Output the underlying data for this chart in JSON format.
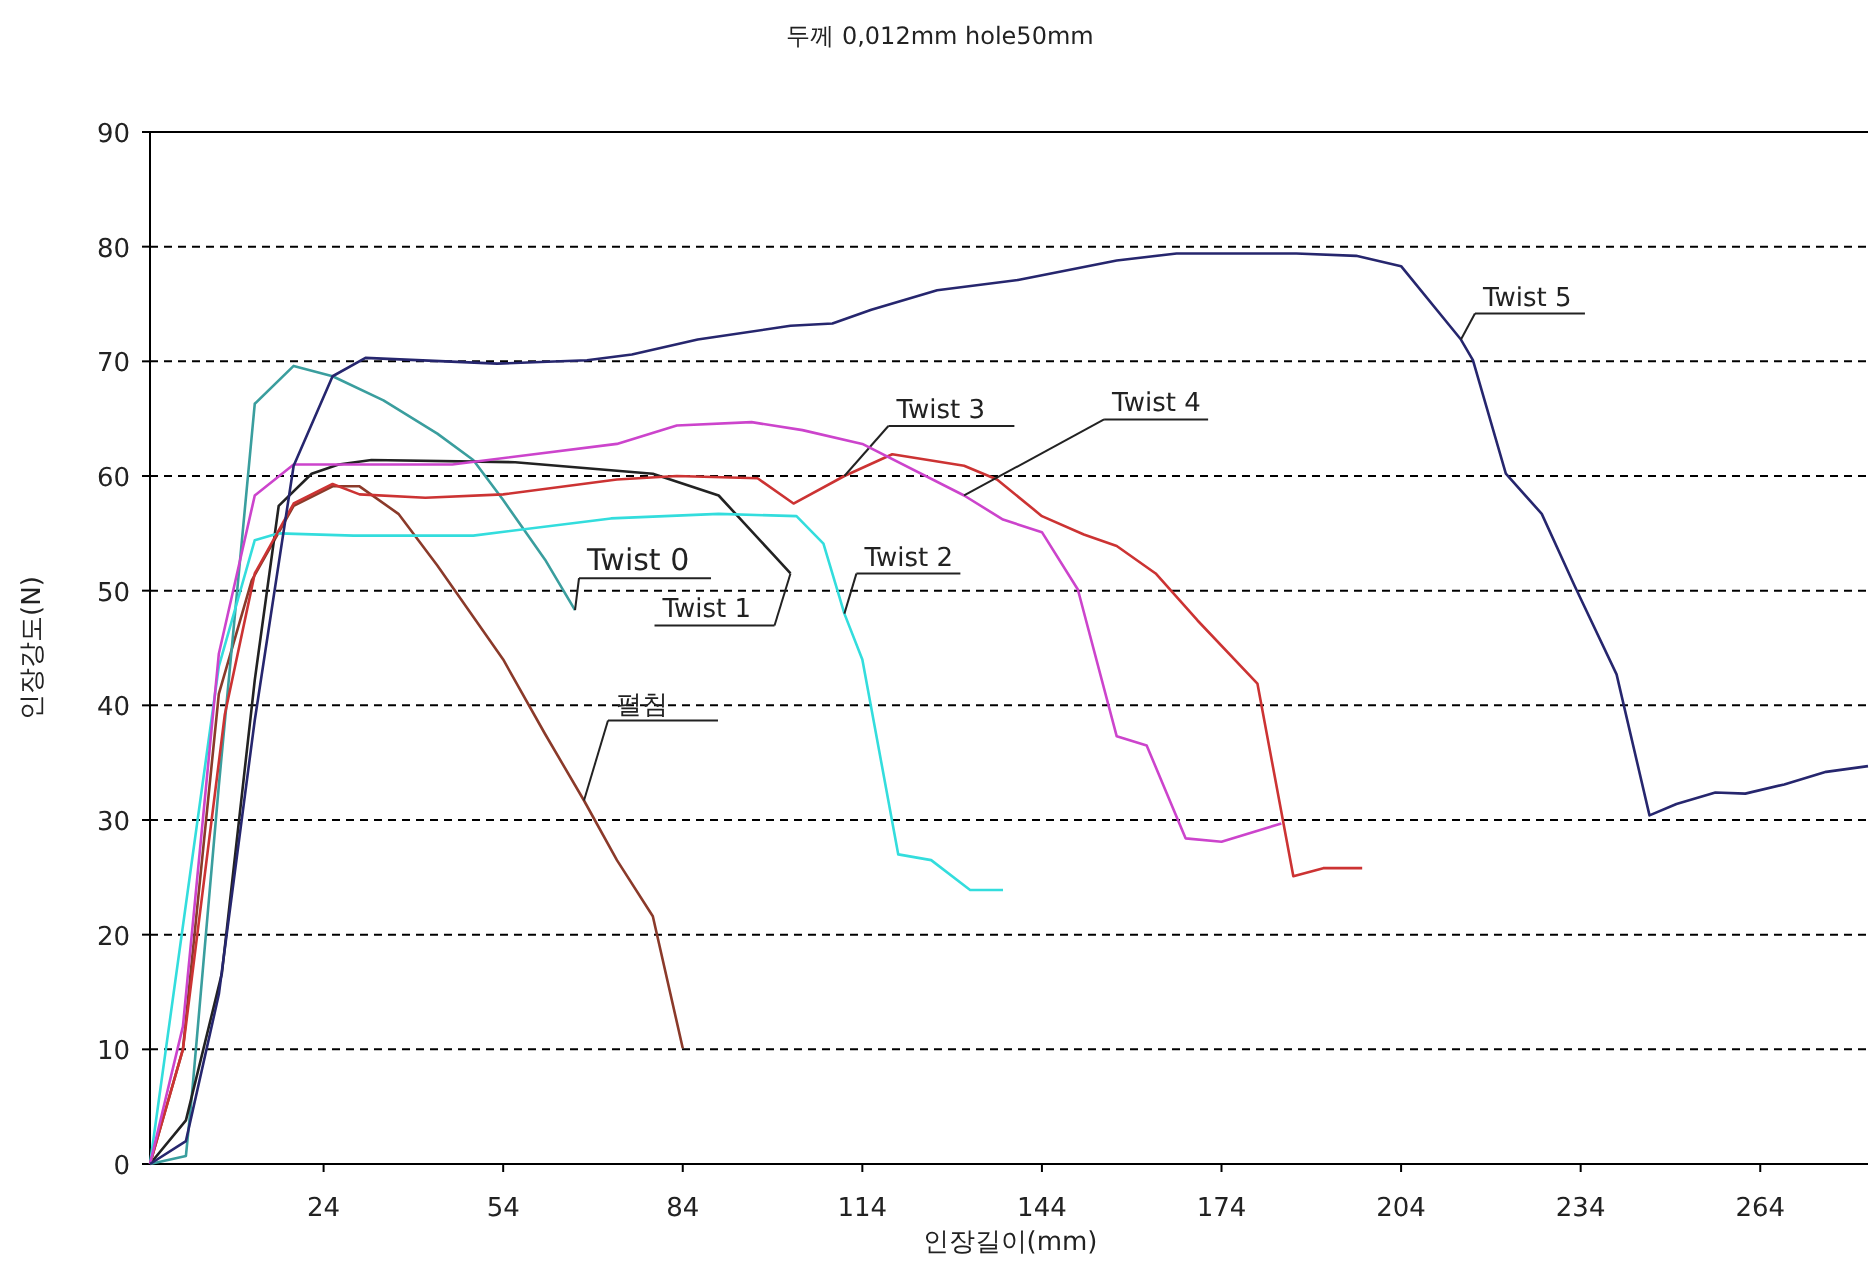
{
  "chart_data": {
    "type": "line",
    "title": "두께 0,012mm hole50mm",
    "xlabel": "인장길이(mm)",
    "ylabel": "인장강도(N)",
    "xlim": [
      -5,
      282
    ],
    "xticks": [
      24,
      54,
      84,
      114,
      144,
      174,
      204,
      234,
      264
    ],
    "ylim": [
      0,
      90
    ],
    "yticks": [
      0,
      10,
      20,
      30,
      40,
      50,
      60,
      70,
      80,
      90
    ],
    "grid": "y",
    "line_style": "solid",
    "series": [
      {
        "name": "펼침",
        "color": "#8b3a2a",
        "x": [
          -5,
          0.5,
          6.5,
          12,
          19,
          25.5,
          30,
          36.5,
          43,
          54,
          61,
          67.5,
          73,
          79,
          84
        ],
        "values": [
          0,
          10,
          41,
          50.9,
          57.4,
          59.1,
          59.1,
          56.7,
          52.2,
          44,
          37.5,
          31.7,
          26.5,
          21.6,
          10.1
        ]
      },
      {
        "name": "Twist 0",
        "color": "#3a9e9e",
        "x": [
          -5,
          1,
          2,
          6.5,
          12.5,
          19,
          25.5,
          34,
          43,
          49,
          54,
          61,
          66
        ],
        "values": [
          0,
          0.7,
          6,
          33,
          66.3,
          69.6,
          68.7,
          66.6,
          63.7,
          61.4,
          57.9,
          52.7,
          48.3
        ]
      },
      {
        "name": "Twist 1",
        "color": "#222222",
        "x": [
          -5,
          1,
          7,
          12.5,
          16.5,
          22,
          26.5,
          32,
          56,
          79,
          90,
          99,
          102
        ],
        "values": [
          0,
          3.8,
          16.6,
          42.2,
          57.4,
          60.2,
          61,
          61.4,
          61.2,
          60.2,
          58.3,
          53.2,
          51.5
        ]
      },
      {
        "name": "Twist 2",
        "color": "#33dddd",
        "x": [
          -5,
          6.5,
          12.5,
          16.5,
          29,
          49,
          72,
          90,
          103,
          107.5,
          111,
          114,
          120,
          125.5,
          132,
          137.5
        ],
        "values": [
          0,
          43.4,
          54.4,
          55,
          54.8,
          54.8,
          56.3,
          56.7,
          56.5,
          54.1,
          48,
          44,
          27,
          26.5,
          23.9,
          23.9
        ]
      },
      {
        "name": "Twist 3",
        "color": "#cc3333",
        "x": [
          -5,
          0.5,
          7.5,
          12.5,
          19,
          25.5,
          30,
          41,
          54,
          73,
          83,
          96.5,
          102.5,
          111,
          119,
          131,
          136.5,
          144,
          151,
          156.5,
          163,
          170,
          180,
          186,
          191,
          197.5
        ],
        "values": [
          0,
          10,
          39.2,
          51.5,
          57.6,
          59.3,
          58.4,
          58.1,
          58.4,
          59.7,
          60,
          59.8,
          57.6,
          60,
          61.9,
          60.9,
          59.7,
          56.5,
          54.9,
          53.9,
          51.5,
          47.4,
          41.9,
          25.1,
          25.8,
          25.8
        ]
      },
      {
        "name": "Twist 4",
        "color": "#cc44cc",
        "x": [
          -5,
          0.5,
          6.5,
          12.5,
          19,
          45.5,
          73,
          83,
          95.5,
          104,
          114,
          131,
          137.5,
          144,
          150,
          156.5,
          161.5,
          168,
          174,
          184
        ],
        "values": [
          0,
          12,
          44.5,
          58.3,
          61,
          61,
          62.8,
          64.4,
          64.7,
          64,
          62.8,
          58.3,
          56.2,
          55.1,
          50.1,
          37.3,
          36.5,
          28.4,
          28.1,
          29.7
        ]
      },
      {
        "name": "Twist 5",
        "color": "#26266e",
        "x": [
          -5,
          1,
          6.5,
          12.5,
          19,
          25.5,
          31,
          53,
          68,
          75.5,
          86.5,
          102,
          109,
          115.5,
          126.5,
          140,
          156.5,
          166.5,
          186.5,
          196.5,
          204,
          214,
          216,
          221.5,
          227.5,
          233,
          240,
          245.5,
          250,
          256.5,
          261.5,
          268,
          275,
          282
        ],
        "values": [
          0,
          2,
          14.8,
          38.7,
          60.9,
          68.7,
          70.3,
          69.8,
          70.1,
          70.6,
          71.9,
          73.1,
          73.3,
          74.5,
          76.2,
          77.1,
          78.8,
          79.4,
          79.4,
          79.2,
          78.3,
          71.9,
          70.1,
          60.2,
          56.7,
          50.4,
          42.7,
          30.4,
          31.4,
          32.4,
          32.3,
          33.1,
          34.2,
          34.7
        ]
      }
    ]
  }
}
